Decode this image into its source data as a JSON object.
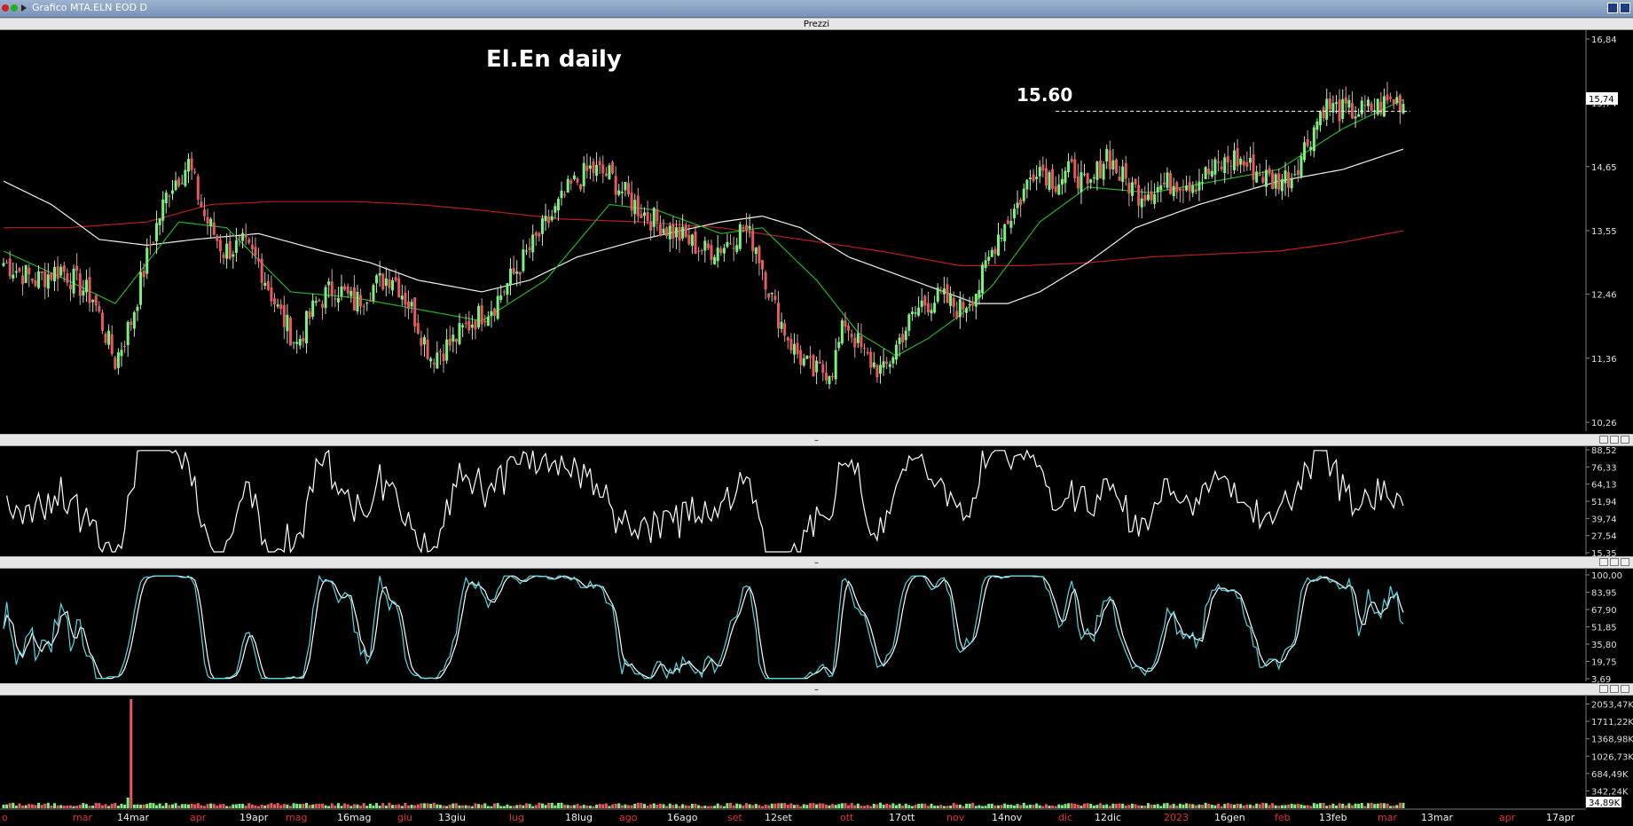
{
  "window": {
    "title": "Grafico MTA.ELN EOD D"
  },
  "panels": {
    "price_title": "Prezzi",
    "divider_mark": "–"
  },
  "chart_data": [
    {
      "type": "candlestick",
      "panel": "price",
      "annotation_title": "El.En daily",
      "annotation_level_label": "15.60",
      "level": 15.6,
      "last_price_label": "15,74",
      "last_price": 15.74,
      "y_ticks": [
        "16,84",
        "15,74",
        "14,65",
        "13,55",
        "12,46",
        "11,36",
        "10,26"
      ],
      "ylim": [
        10.26,
        16.84
      ],
      "x_labels": [
        "o",
        "mar",
        "14mar",
        "apr",
        "19apr",
        "mag",
        "16mag",
        "giu",
        "13giu",
        "lug",
        "18lug",
        "ago",
        "16ago",
        "set",
        "12set",
        "ott",
        "17ott",
        "nov",
        "14nov",
        "dic",
        "12dic",
        "2023",
        "16gen",
        "feb",
        "13feb",
        "mar",
        "13mar",
        "apr",
        "17apr"
      ],
      "x_label_colors": [
        "red",
        "red",
        "white",
        "red",
        "white",
        "red",
        "white",
        "red",
        "white",
        "red",
        "white",
        "red",
        "white",
        "red",
        "white",
        "red",
        "white",
        "red",
        "white",
        "red",
        "white",
        "red",
        "white",
        "red",
        "white",
        "red",
        "white",
        "red",
        "white"
      ],
      "close_anchors": [
        [
          0,
          13.0
        ],
        [
          10,
          12.7
        ],
        [
          18,
          12.9
        ],
        [
          28,
          12.4
        ],
        [
          35,
          11.3
        ],
        [
          40,
          12.0
        ],
        [
          46,
          13.3
        ],
        [
          52,
          14.3
        ],
        [
          58,
          14.7
        ],
        [
          63,
          13.8
        ],
        [
          69,
          13.2
        ],
        [
          75,
          13.3
        ],
        [
          80,
          13.0
        ],
        [
          86,
          12.2
        ],
        [
          92,
          11.6
        ],
        [
          98,
          12.3
        ],
        [
          104,
          12.6
        ],
        [
          110,
          12.3
        ],
        [
          116,
          12.6
        ],
        [
          122,
          12.8
        ],
        [
          128,
          12.2
        ],
        [
          134,
          11.4
        ],
        [
          140,
          11.6
        ],
        [
          147,
          12.0
        ],
        [
          154,
          12.3
        ],
        [
          160,
          12.8
        ],
        [
          166,
          13.3
        ],
        [
          172,
          13.8
        ],
        [
          178,
          14.3
        ],
        [
          184,
          14.6
        ],
        [
          190,
          14.5
        ],
        [
          196,
          14.1
        ],
        [
          202,
          13.8
        ],
        [
          208,
          13.6
        ],
        [
          214,
          13.4
        ],
        [
          220,
          13.2
        ],
        [
          226,
          13.3
        ],
        [
          232,
          13.6
        ],
        [
          236,
          13.3
        ],
        [
          242,
          12.2
        ],
        [
          248,
          11.5
        ],
        [
          254,
          11.1
        ],
        [
          260,
          11.2
        ],
        [
          264,
          12.0
        ],
        [
          270,
          11.4
        ],
        [
          276,
          11.1
        ],
        [
          282,
          11.8
        ],
        [
          288,
          12.3
        ],
        [
          294,
          12.4
        ],
        [
          300,
          12.2
        ],
        [
          306,
          12.6
        ],
        [
          312,
          13.5
        ],
        [
          318,
          14.0
        ],
        [
          324,
          14.7
        ],
        [
          330,
          14.4
        ],
        [
          336,
          14.6
        ],
        [
          340,
          14.2
        ],
        [
          346,
          14.9
        ],
        [
          350,
          14.5
        ],
        [
          356,
          14.2
        ],
        [
          362,
          14.3
        ],
        [
          368,
          14.4
        ],
        [
          374,
          14.4
        ],
        [
          380,
          14.6
        ],
        [
          386,
          14.8
        ],
        [
          392,
          14.6
        ],
        [
          398,
          14.4
        ],
        [
          404,
          14.5
        ],
        [
          410,
          15.2
        ],
        [
          414,
          15.7
        ],
        [
          420,
          15.6
        ],
        [
          426,
          15.6
        ],
        [
          432,
          15.7
        ],
        [
          436,
          15.8
        ],
        [
          439,
          15.75
        ]
      ],
      "ma_fast_anchors": [
        [
          0,
          13.2
        ],
        [
          20,
          12.7
        ],
        [
          35,
          12.3
        ],
        [
          55,
          13.7
        ],
        [
          70,
          13.6
        ],
        [
          90,
          12.5
        ],
        [
          110,
          12.4
        ],
        [
          130,
          12.2
        ],
        [
          150,
          12.0
        ],
        [
          170,
          12.7
        ],
        [
          190,
          14.0
        ],
        [
          205,
          13.9
        ],
        [
          225,
          13.5
        ],
        [
          238,
          13.6
        ],
        [
          255,
          12.7
        ],
        [
          268,
          11.8
        ],
        [
          280,
          11.4
        ],
        [
          290,
          11.7
        ],
        [
          300,
          12.1
        ],
        [
          310,
          12.6
        ],
        [
          325,
          13.7
        ],
        [
          340,
          14.3
        ],
        [
          360,
          14.2
        ],
        [
          380,
          14.4
        ],
        [
          400,
          14.6
        ],
        [
          420,
          15.3
        ],
        [
          439,
          15.8
        ]
      ],
      "ma_mid_anchors": [
        [
          0,
          14.4
        ],
        [
          15,
          14.0
        ],
        [
          30,
          13.4
        ],
        [
          45,
          13.3
        ],
        [
          60,
          13.4
        ],
        [
          80,
          13.5
        ],
        [
          100,
          13.2
        ],
        [
          115,
          13.0
        ],
        [
          130,
          12.7
        ],
        [
          150,
          12.5
        ],
        [
          165,
          12.7
        ],
        [
          180,
          13.1
        ],
        [
          200,
          13.4
        ],
        [
          225,
          13.7
        ],
        [
          238,
          13.8
        ],
        [
          250,
          13.6
        ],
        [
          265,
          13.1
        ],
        [
          285,
          12.7
        ],
        [
          305,
          12.3
        ],
        [
          315,
          12.3
        ],
        [
          325,
          12.5
        ],
        [
          340,
          13.0
        ],
        [
          355,
          13.6
        ],
        [
          375,
          14.0
        ],
        [
          400,
          14.4
        ],
        [
          420,
          14.6
        ],
        [
          439,
          14.95
        ]
      ],
      "ma_slow_anchors": [
        [
          0,
          13.6
        ],
        [
          20,
          13.6
        ],
        [
          45,
          13.7
        ],
        [
          65,
          14.0
        ],
        [
          85,
          14.05
        ],
        [
          110,
          14.05
        ],
        [
          130,
          14.0
        ],
        [
          150,
          13.9
        ],
        [
          175,
          13.75
        ],
        [
          200,
          13.7
        ],
        [
          225,
          13.6
        ],
        [
          250,
          13.4
        ],
        [
          275,
          13.2
        ],
        [
          300,
          12.95
        ],
        [
          320,
          12.95
        ],
        [
          340,
          13.0
        ],
        [
          360,
          13.1
        ],
        [
          380,
          13.15
        ],
        [
          400,
          13.2
        ],
        [
          420,
          13.35
        ],
        [
          439,
          13.55
        ]
      ]
    },
    {
      "type": "line",
      "panel": "oscillator-1",
      "y_ticks": [
        "88,52",
        "76,33",
        "64,13",
        "51,94",
        "39,74",
        "27,54",
        "15,35"
      ],
      "ylim": [
        15.35,
        88.52
      ]
    },
    {
      "type": "line",
      "panel": "stochastic",
      "y_ticks": [
        "100,00",
        "83,95",
        "67,90",
        "51,85",
        "35,80",
        "19,75",
        "3,69"
      ],
      "ylim": [
        3.69,
        100.0
      ]
    },
    {
      "type": "bar",
      "panel": "volume",
      "y_ticks": [
        "2053,47K",
        "1711,22K",
        "1368,98K",
        "1026,73K",
        "684,49K",
        "342,24K"
      ],
      "last_value_label": "34,89K",
      "ylim": [
        0,
        2150
      ],
      "spike_index": 40,
      "spike_value": 2150
    }
  ],
  "colors": {
    "up": "#7cf07c",
    "down": "#e8595f",
    "ma_fast": "#23b323",
    "ma_mid": "#f0f0f0",
    "ma_slow": "#b81f1f",
    "stoch_k": "#55d9e6",
    "label_red": "#e23030"
  }
}
